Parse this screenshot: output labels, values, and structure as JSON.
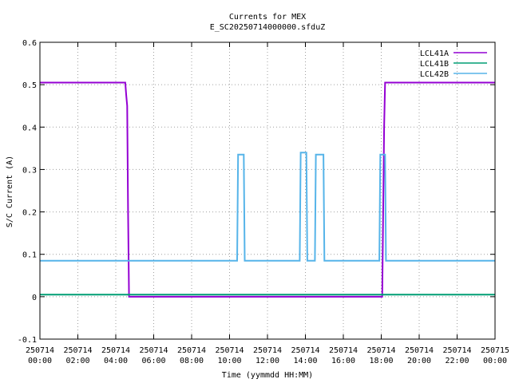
{
  "chart_data": {
    "type": "line",
    "title": "Currents for MEX",
    "subtitle": "E_SC20250714000000.sfduZ",
    "xlabel": "Time (yymmdd HH:MM)",
    "ylabel": "S/C Current (A)",
    "xlim": [
      0,
      24
    ],
    "ylim": [
      -0.1,
      0.6
    ],
    "grid": true,
    "legend_position": "top-right",
    "x_ticks": [
      {
        "value": 0,
        "date": "250714",
        "time": "00:00"
      },
      {
        "value": 2,
        "date": "250714",
        "time": "02:00"
      },
      {
        "value": 4,
        "date": "250714",
        "time": "04:00"
      },
      {
        "value": 6,
        "date": "250714",
        "time": "06:00"
      },
      {
        "value": 8,
        "date": "250714",
        "time": "08:00"
      },
      {
        "value": 10,
        "date": "250714",
        "time": "10:00"
      },
      {
        "value": 12,
        "date": "250714",
        "time": "12:00"
      },
      {
        "value": 14,
        "date": "250714",
        "time": "14:00"
      },
      {
        "value": 16,
        "date": "250714",
        "time": "16:00"
      },
      {
        "value": 18,
        "date": "250714",
        "time": "18:00"
      },
      {
        "value": 20,
        "date": "250714",
        "time": "20:00"
      },
      {
        "value": 22,
        "date": "250714",
        "time": "22:00"
      },
      {
        "value": 24,
        "date": "250715",
        "time": "00:00"
      }
    ],
    "y_ticks": [
      {
        "value": -0.1,
        "label": "-0.1"
      },
      {
        "value": 0,
        "label": "0"
      },
      {
        "value": 0.1,
        "label": "0.1"
      },
      {
        "value": 0.2,
        "label": "0.2"
      },
      {
        "value": 0.3,
        "label": "0.3"
      },
      {
        "value": 0.4,
        "label": "0.4"
      },
      {
        "value": 0.5,
        "label": "0.5"
      },
      {
        "value": 0.6,
        "label": "0.6"
      }
    ],
    "series": [
      {
        "name": "LCL41A",
        "color": "#9400d3",
        "x": [
          0,
          4.5,
          4.55,
          4.6,
          4.65,
          4.7,
          18.05,
          18.1,
          18.15,
          18.2,
          24
        ],
        "y": [
          0.505,
          0.505,
          0.475,
          0.45,
          0.2,
          0.0,
          0.0,
          0.2,
          0.4,
          0.505,
          0.505
        ]
      },
      {
        "name": "LCL41B",
        "color": "#009e73",
        "x": [
          0,
          24
        ],
        "y": [
          0.005,
          0.005
        ]
      },
      {
        "name": "LCL42B",
        "color": "#56b4e9",
        "x": [
          0,
          10.4,
          10.45,
          10.75,
          10.8,
          13.7,
          13.75,
          14.05,
          14.1,
          14.5,
          14.55,
          14.95,
          15.0,
          17.9,
          17.95,
          18.2,
          18.25,
          24
        ],
        "y": [
          0.085,
          0.085,
          0.335,
          0.335,
          0.085,
          0.085,
          0.34,
          0.34,
          0.085,
          0.085,
          0.335,
          0.335,
          0.085,
          0.085,
          0.335,
          0.335,
          0.085,
          0.085
        ]
      }
    ]
  }
}
